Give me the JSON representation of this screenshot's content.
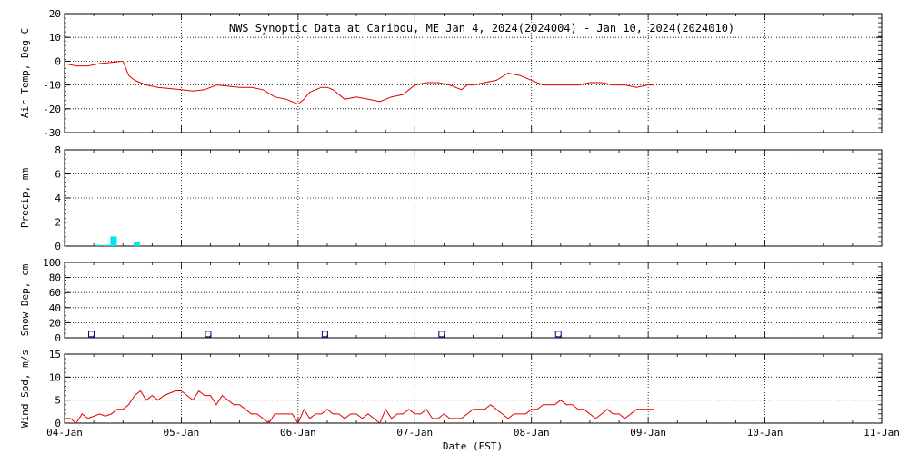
{
  "chart_data": [
    {
      "type": "line",
      "title": "NWS Synoptic Data at Caribou, ME   Jan  4, 2024(2024004) - Jan 10, 2024(2024010)",
      "ylabel": "Air Temp, Deg C",
      "ylim": [
        -30,
        20
      ],
      "yticks": [
        "20",
        "10",
        "0",
        "-10",
        "-20",
        "-30"
      ],
      "grid": true,
      "series": [
        {
          "color": "#e00000",
          "x": [
            0.0,
            0.1,
            0.2,
            0.3,
            0.4,
            0.5,
            0.55,
            0.6,
            0.65,
            0.7,
            0.8,
            0.9,
            1.0,
            1.1,
            1.2,
            1.3,
            1.4,
            1.5,
            1.6,
            1.7,
            1.8,
            1.9,
            2.0,
            2.05,
            2.1,
            2.2,
            2.25,
            2.3,
            2.4,
            2.5,
            2.6,
            2.7,
            2.75,
            2.8,
            2.9,
            3.0,
            3.1,
            3.2,
            3.3,
            3.4,
            3.45,
            3.5,
            3.6,
            3.7,
            3.8,
            3.9,
            4.0,
            4.1,
            4.2,
            4.3,
            4.4,
            4.5,
            4.6,
            4.7,
            4.8,
            4.9,
            5.0,
            5.05
          ],
          "values": [
            -1,
            -2,
            -2,
            -1,
            -0.5,
            0,
            -6,
            -8,
            -9,
            -10,
            -11,
            -11.5,
            -12,
            -12.5,
            -12,
            -10,
            -10.5,
            -11,
            -11,
            -12,
            -15,
            -16,
            -18,
            -16,
            -13,
            -11,
            -11,
            -12,
            -16,
            -15,
            -16,
            -17,
            -16,
            -15,
            -14,
            -10,
            -9,
            -9,
            -10,
            -12,
            -10,
            -10,
            -9,
            -8,
            -5,
            -6,
            -8,
            -10,
            -10,
            -10,
            -10,
            -9,
            -9,
            -10,
            -10,
            -11,
            -10,
            -10
          ]
        }
      ]
    },
    {
      "type": "bar",
      "ylabel": "Precip, mm",
      "ylim": [
        0,
        8
      ],
      "yticks": [
        "8",
        "6",
        "4",
        "2",
        "0"
      ],
      "grid": true,
      "color": "#00e5ee",
      "x": [
        0.28,
        0.36,
        0.42,
        0.62
      ],
      "values": [
        0.1,
        0.1,
        0.8,
        0.3
      ]
    },
    {
      "type": "scatter",
      "ylabel": "Snow Dep, cm",
      "ylim": [
        0,
        100
      ],
      "yticks": [
        "100",
        "80",
        "60",
        "40",
        "20",
        "0"
      ],
      "grid": true,
      "color": "#000080",
      "x": [
        0.23,
        1.23,
        2.23,
        3.23,
        4.23
      ],
      "values": [
        5,
        5,
        5,
        5,
        5
      ]
    },
    {
      "type": "line",
      "ylabel": "Wind Spd, m/s",
      "ylim": [
        0,
        15
      ],
      "yticks": [
        "15",
        "10",
        "5",
        "0"
      ],
      "grid": true,
      "series": [
        {
          "color": "#e00000",
          "x": [
            0.0,
            0.05,
            0.1,
            0.15,
            0.2,
            0.25,
            0.3,
            0.35,
            0.4,
            0.45,
            0.5,
            0.55,
            0.6,
            0.65,
            0.7,
            0.75,
            0.8,
            0.85,
            0.9,
            0.95,
            1.0,
            1.05,
            1.1,
            1.15,
            1.2,
            1.25,
            1.3,
            1.35,
            1.4,
            1.45,
            1.5,
            1.55,
            1.6,
            1.65,
            1.7,
            1.75,
            1.8,
            1.85,
            1.9,
            1.95,
            2.0,
            2.05,
            2.1,
            2.15,
            2.2,
            2.25,
            2.3,
            2.35,
            2.4,
            2.45,
            2.5,
            2.55,
            2.6,
            2.65,
            2.7,
            2.75,
            2.8,
            2.85,
            2.9,
            2.95,
            3.0,
            3.05,
            3.1,
            3.15,
            3.2,
            3.25,
            3.3,
            3.35,
            3.4,
            3.45,
            3.5,
            3.55,
            3.6,
            3.65,
            3.7,
            3.75,
            3.8,
            3.85,
            3.9,
            3.95,
            4.0,
            4.05,
            4.1,
            4.15,
            4.2,
            4.25,
            4.3,
            4.35,
            4.4,
            4.45,
            4.5,
            4.55,
            4.6,
            4.65,
            4.7,
            4.75,
            4.8,
            4.85,
            4.9,
            4.95,
            5.0,
            5.05
          ],
          "values": [
            1,
            1,
            0,
            2,
            1,
            1.5,
            2,
            1.5,
            2,
            3,
            3,
            4,
            6,
            7,
            5,
            6,
            5,
            6,
            6.5,
            7,
            7,
            6,
            5,
            7,
            6,
            6,
            4,
            6,
            5,
            4,
            4,
            3,
            2,
            2,
            1,
            0,
            2,
            2,
            2,
            2,
            0,
            3,
            1,
            2,
            2,
            3,
            2,
            2,
            1,
            2,
            2,
            1,
            2,
            1,
            0,
            3,
            1,
            2,
            2,
            3,
            2,
            2,
            3,
            1,
            1,
            2,
            1,
            1,
            1,
            2,
            3,
            3,
            3,
            4,
            3,
            2,
            1,
            2,
            2,
            2,
            3,
            3,
            4,
            4,
            4,
            5,
            4,
            4,
            3,
            3,
            2,
            1,
            2,
            3,
            2,
            2,
            1,
            2,
            3,
            3,
            3,
            3
          ]
        }
      ]
    }
  ],
  "x_axis": {
    "label": "Date (EST)",
    "ticks": [
      "04-Jan",
      "05-Jan",
      "06-Jan",
      "07-Jan",
      "08-Jan",
      "09-Jan",
      "10-Jan",
      "11-Jan"
    ],
    "range_days": [
      0,
      7
    ]
  }
}
